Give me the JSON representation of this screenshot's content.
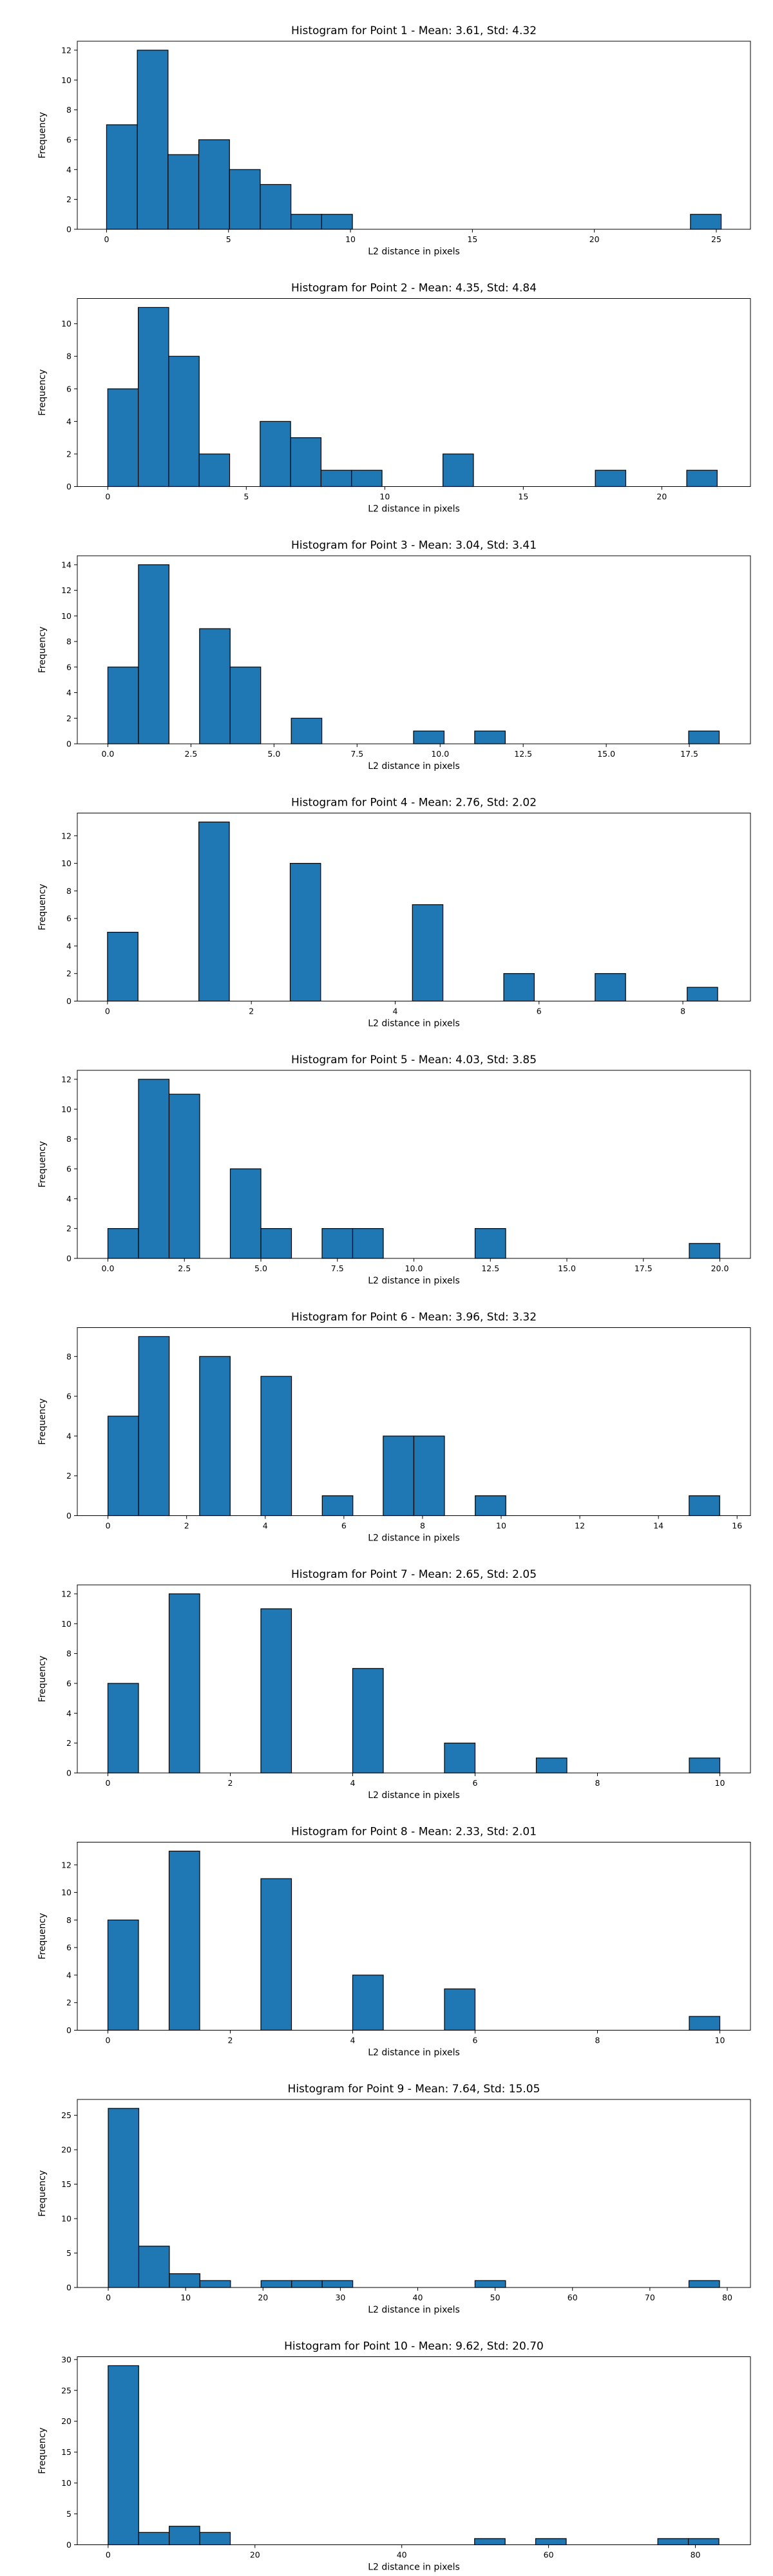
{
  "chart_data": [
    {
      "type": "bar",
      "title": "Histogram for Point 1 - Mean: 3.61, Std: 4.32",
      "xlabel": "L2 distance in pixels",
      "ylabel": "Frequency",
      "xlim": [
        -1.2,
        26.4
      ],
      "ylim": [
        0,
        12.6
      ],
      "xticks": [
        0,
        5,
        10,
        15,
        20,
        25
      ],
      "xtick_labels": [
        "0",
        "5",
        "10",
        "15",
        "20",
        "25"
      ],
      "yticks": [
        0,
        2,
        4,
        6,
        8,
        10,
        12
      ],
      "bin_width": 1.26,
      "bins": [
        {
          "x0": 0.0,
          "count": 7
        },
        {
          "x0": 1.26,
          "count": 12
        },
        {
          "x0": 2.52,
          "count": 5
        },
        {
          "x0": 3.78,
          "count": 6
        },
        {
          "x0": 5.04,
          "count": 4
        },
        {
          "x0": 6.3,
          "count": 3
        },
        {
          "x0": 7.56,
          "count": 1
        },
        {
          "x0": 8.82,
          "count": 1
        },
        {
          "x0": 23.94,
          "count": 1
        }
      ],
      "bar_color": "#1f77b4",
      "edge_color": "#000000"
    },
    {
      "type": "bar",
      "title": "Histogram for Point 2 - Mean: 4.35, Std: 4.84",
      "xlabel": "L2 distance in pixels",
      "ylabel": "Frequency",
      "xlim": [
        -1.1,
        23.2
      ],
      "ylim": [
        0,
        11.55
      ],
      "xticks": [
        0,
        5,
        10,
        15,
        20
      ],
      "xtick_labels": [
        "0",
        "5",
        "10",
        "15",
        "20"
      ],
      "yticks": [
        0,
        2,
        4,
        6,
        8,
        10
      ],
      "bin_width": 1.1,
      "bins": [
        {
          "x0": 0.0,
          "count": 6
        },
        {
          "x0": 1.1,
          "count": 11
        },
        {
          "x0": 2.2,
          "count": 8
        },
        {
          "x0": 3.3,
          "count": 2
        },
        {
          "x0": 5.5,
          "count": 4
        },
        {
          "x0": 6.6,
          "count": 3
        },
        {
          "x0": 7.7,
          "count": 1
        },
        {
          "x0": 8.8,
          "count": 1
        },
        {
          "x0": 12.1,
          "count": 2
        },
        {
          "x0": 17.6,
          "count": 1
        },
        {
          "x0": 20.9,
          "count": 1
        }
      ],
      "bar_color": "#1f77b4",
      "edge_color": "#000000"
    },
    {
      "type": "bar",
      "title": "Histogram for Point 3 - Mean: 3.04, Std: 3.41",
      "xlabel": "L2 distance in pixels",
      "ylabel": "Frequency",
      "xlim": [
        -0.92,
        19.34
      ],
      "ylim": [
        0,
        14.7
      ],
      "xticks": [
        0,
        2.5,
        5,
        7.5,
        10,
        12.5,
        15,
        17.5
      ],
      "xtick_labels": [
        "0.0",
        "2.5",
        "5.0",
        "7.5",
        "10.0",
        "12.5",
        "15.0",
        "17.5"
      ],
      "yticks": [
        0,
        2,
        4,
        6,
        8,
        10,
        12,
        14
      ],
      "bin_width": 0.92,
      "bins": [
        {
          "x0": 0.0,
          "count": 6
        },
        {
          "x0": 0.92,
          "count": 14
        },
        {
          "x0": 2.76,
          "count": 9
        },
        {
          "x0": 3.68,
          "count": 6
        },
        {
          "x0": 5.52,
          "count": 2
        },
        {
          "x0": 9.2,
          "count": 1
        },
        {
          "x0": 11.04,
          "count": 1
        },
        {
          "x0": 17.48,
          "count": 1
        }
      ],
      "bar_color": "#1f77b4",
      "edge_color": "#000000"
    },
    {
      "type": "bar",
      "title": "Histogram for Point 4 - Mean: 2.76, Std: 2.02",
      "xlabel": "L2 distance in pixels",
      "ylabel": "Frequency",
      "xlim": [
        -0.42,
        8.94
      ],
      "ylim": [
        0,
        13.65
      ],
      "xticks": [
        0,
        2,
        4,
        6,
        8
      ],
      "xtick_labels": [
        "0",
        "2",
        "4",
        "6",
        "8"
      ],
      "yticks": [
        0,
        2,
        4,
        6,
        8,
        10,
        12
      ],
      "bin_width": 0.424,
      "bins": [
        {
          "x0": 0.0,
          "count": 5
        },
        {
          "x0": 1.27,
          "count": 13
        },
        {
          "x0": 2.54,
          "count": 10
        },
        {
          "x0": 4.24,
          "count": 7
        },
        {
          "x0": 5.51,
          "count": 2
        },
        {
          "x0": 6.78,
          "count": 2
        },
        {
          "x0": 8.06,
          "count": 1
        }
      ],
      "bar_color": "#1f77b4",
      "edge_color": "#000000"
    },
    {
      "type": "bar",
      "title": "Histogram for Point 5 - Mean: 4.03, Std: 3.85",
      "xlabel": "L2 distance in pixels",
      "ylabel": "Frequency",
      "xlim": [
        -1.0,
        21.0
      ],
      "ylim": [
        0,
        12.6
      ],
      "xticks": [
        0,
        2.5,
        5,
        7.5,
        10,
        12.5,
        15,
        17.5,
        20
      ],
      "xtick_labels": [
        "0.0",
        "2.5",
        "5.0",
        "7.5",
        "10.0",
        "12.5",
        "15.0",
        "17.5",
        "20.0"
      ],
      "yticks": [
        0,
        2,
        4,
        6,
        8,
        10,
        12
      ],
      "bin_width": 1.0,
      "bins": [
        {
          "x0": 0.0,
          "count": 2
        },
        {
          "x0": 1.0,
          "count": 12
        },
        {
          "x0": 2.0,
          "count": 11
        },
        {
          "x0": 4.0,
          "count": 6
        },
        {
          "x0": 5.0,
          "count": 2
        },
        {
          "x0": 7.0,
          "count": 2
        },
        {
          "x0": 8.0,
          "count": 2
        },
        {
          "x0": 12.0,
          "count": 2
        },
        {
          "x0": 19.0,
          "count": 1
        }
      ],
      "bar_color": "#1f77b4",
      "edge_color": "#000000"
    },
    {
      "type": "bar",
      "title": "Histogram for Point 6 - Mean: 3.96, Std: 3.32",
      "xlabel": "L2 distance in pixels",
      "ylabel": "Frequency",
      "xlim": [
        -0.78,
        16.34
      ],
      "ylim": [
        0,
        9.45
      ],
      "xticks": [
        0,
        2,
        4,
        6,
        8,
        10,
        12,
        14,
        16
      ],
      "xtick_labels": [
        "0",
        "2",
        "4",
        "6",
        "8",
        "10",
        "12",
        "14",
        "16"
      ],
      "yticks": [
        0,
        2,
        4,
        6,
        8
      ],
      "bin_width": 0.778,
      "bins": [
        {
          "x0": 0.0,
          "count": 5
        },
        {
          "x0": 0.78,
          "count": 9
        },
        {
          "x0": 2.33,
          "count": 8
        },
        {
          "x0": 3.89,
          "count": 7
        },
        {
          "x0": 5.45,
          "count": 1
        },
        {
          "x0": 7.0,
          "count": 4
        },
        {
          "x0": 7.78,
          "count": 4
        },
        {
          "x0": 9.34,
          "count": 1
        },
        {
          "x0": 14.78,
          "count": 1
        }
      ],
      "bar_color": "#1f77b4",
      "edge_color": "#000000"
    },
    {
      "type": "bar",
      "title": "Histogram for Point 7 - Mean: 2.65, Std: 2.05",
      "xlabel": "L2 distance in pixels",
      "ylabel": "Frequency",
      "xlim": [
        -0.5,
        10.5
      ],
      "ylim": [
        0,
        12.6
      ],
      "xticks": [
        0,
        2,
        4,
        6,
        8,
        10
      ],
      "xtick_labels": [
        "0",
        "2",
        "4",
        "6",
        "8",
        "10"
      ],
      "yticks": [
        0,
        2,
        4,
        6,
        8,
        10,
        12
      ],
      "bin_width": 0.5,
      "bins": [
        {
          "x0": 0.0,
          "count": 6
        },
        {
          "x0": 1.0,
          "count": 12
        },
        {
          "x0": 2.5,
          "count": 11
        },
        {
          "x0": 4.0,
          "count": 7
        },
        {
          "x0": 5.5,
          "count": 2
        },
        {
          "x0": 7.0,
          "count": 1
        },
        {
          "x0": 9.5,
          "count": 1
        }
      ],
      "bar_color": "#1f77b4",
      "edge_color": "#000000"
    },
    {
      "type": "bar",
      "title": "Histogram for Point 8 - Mean: 2.33, Std: 2.01",
      "xlabel": "L2 distance in pixels",
      "ylabel": "Frequency",
      "xlim": [
        -0.5,
        10.5
      ],
      "ylim": [
        0,
        13.65
      ],
      "xticks": [
        0,
        2,
        4,
        6,
        8,
        10
      ],
      "xtick_labels": [
        "0",
        "2",
        "4",
        "6",
        "8",
        "10"
      ],
      "yticks": [
        0,
        2,
        4,
        6,
        8,
        10,
        12
      ],
      "bin_width": 0.5,
      "bins": [
        {
          "x0": 0.0,
          "count": 8
        },
        {
          "x0": 1.0,
          "count": 13
        },
        {
          "x0": 2.5,
          "count": 11
        },
        {
          "x0": 4.0,
          "count": 4
        },
        {
          "x0": 5.5,
          "count": 3
        },
        {
          "x0": 9.5,
          "count": 1
        }
      ],
      "bar_color": "#1f77b4",
      "edge_color": "#000000"
    },
    {
      "type": "bar",
      "title": "Histogram for Point 9 - Mean: 7.64, Std: 15.05",
      "xlabel": "L2 distance in pixels",
      "ylabel": "Frequency",
      "xlim": [
        -4.0,
        83.0
      ],
      "ylim": [
        0,
        27.3
      ],
      "xticks": [
        0,
        10,
        20,
        30,
        40,
        50,
        60,
        70,
        80
      ],
      "xtick_labels": [
        "0",
        "10",
        "20",
        "30",
        "40",
        "50",
        "60",
        "70",
        "80"
      ],
      "yticks": [
        0,
        5,
        10,
        15,
        20,
        25
      ],
      "bin_width": 3.95,
      "bins": [
        {
          "x0": 0.0,
          "count": 26
        },
        {
          "x0": 3.95,
          "count": 6
        },
        {
          "x0": 7.9,
          "count": 2
        },
        {
          "x0": 11.85,
          "count": 1
        },
        {
          "x0": 19.75,
          "count": 1
        },
        {
          "x0": 23.7,
          "count": 1
        },
        {
          "x0": 27.65,
          "count": 1
        },
        {
          "x0": 47.4,
          "count": 1
        },
        {
          "x0": 75.05,
          "count": 1
        }
      ],
      "bar_color": "#1f77b4",
      "edge_color": "#000000"
    },
    {
      "type": "bar",
      "title": "Histogram for Point 10 - Mean: 9.62, Std: 20.70",
      "xlabel": "L2 distance in pixels",
      "ylabel": "Frequency",
      "xlim": [
        -4.2,
        87.5
      ],
      "ylim": [
        0,
        30.45
      ],
      "xticks": [
        0,
        20,
        40,
        60,
        80
      ],
      "xtick_labels": [
        "0",
        "20",
        "40",
        "60",
        "80"
      ],
      "yticks": [
        0,
        5,
        10,
        15,
        20,
        25,
        30
      ],
      "bin_width": 4.16,
      "bins": [
        {
          "x0": 0.0,
          "count": 29
        },
        {
          "x0": 4.16,
          "count": 2
        },
        {
          "x0": 8.32,
          "count": 3
        },
        {
          "x0": 12.48,
          "count": 2
        },
        {
          "x0": 49.92,
          "count": 1
        },
        {
          "x0": 58.24,
          "count": 1
        },
        {
          "x0": 74.88,
          "count": 1
        },
        {
          "x0": 79.04,
          "count": 1
        }
      ],
      "bar_color": "#1f77b4",
      "edge_color": "#000000"
    }
  ]
}
